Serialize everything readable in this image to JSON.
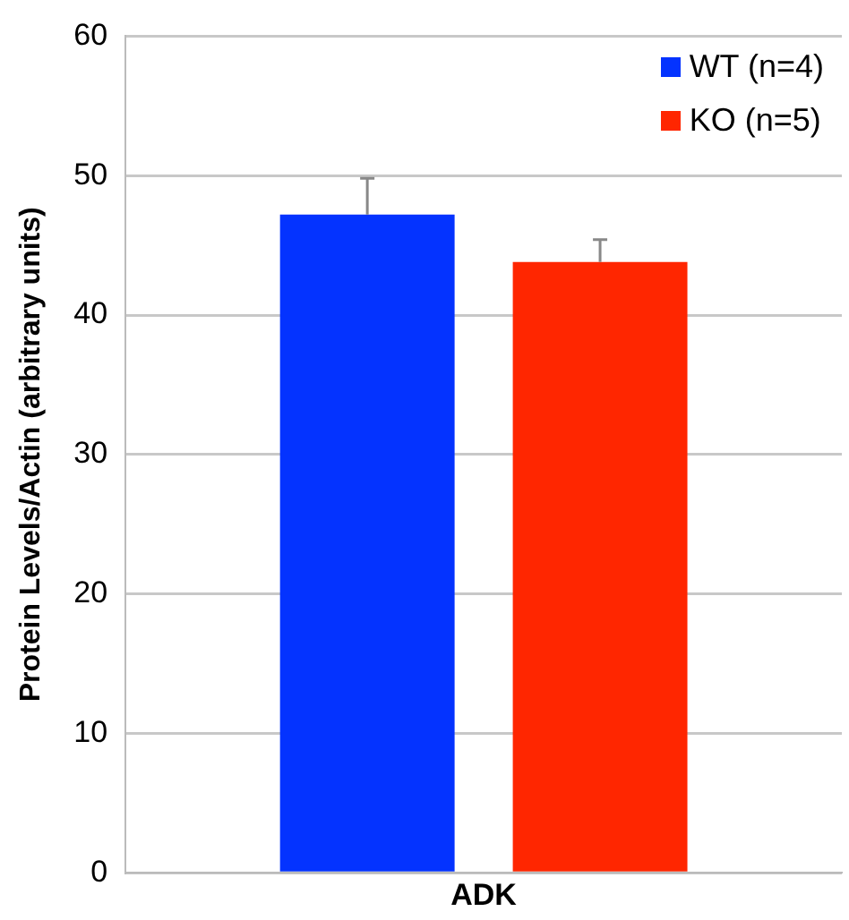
{
  "chart_data": {
    "type": "bar",
    "ylabel": "Protein Levels/Actin (arbitrary units)",
    "categories": [
      "ADK"
    ],
    "series": [
      {
        "name": "WT (n=4)",
        "color": "#0433ff",
        "values": [
          47.2
        ],
        "errors": [
          [
            47.2,
            49.8
          ]
        ]
      },
      {
        "name": "KO (n=5)",
        "color": "#ff2600",
        "values": [
          43.8
        ],
        "errors": [
          [
            43.8,
            45.4
          ]
        ]
      }
    ],
    "ylim": [
      0,
      60
    ],
    "yticks": [
      0,
      10,
      20,
      30,
      40,
      50,
      60
    ],
    "grid": "y",
    "legend": "top right"
  }
}
